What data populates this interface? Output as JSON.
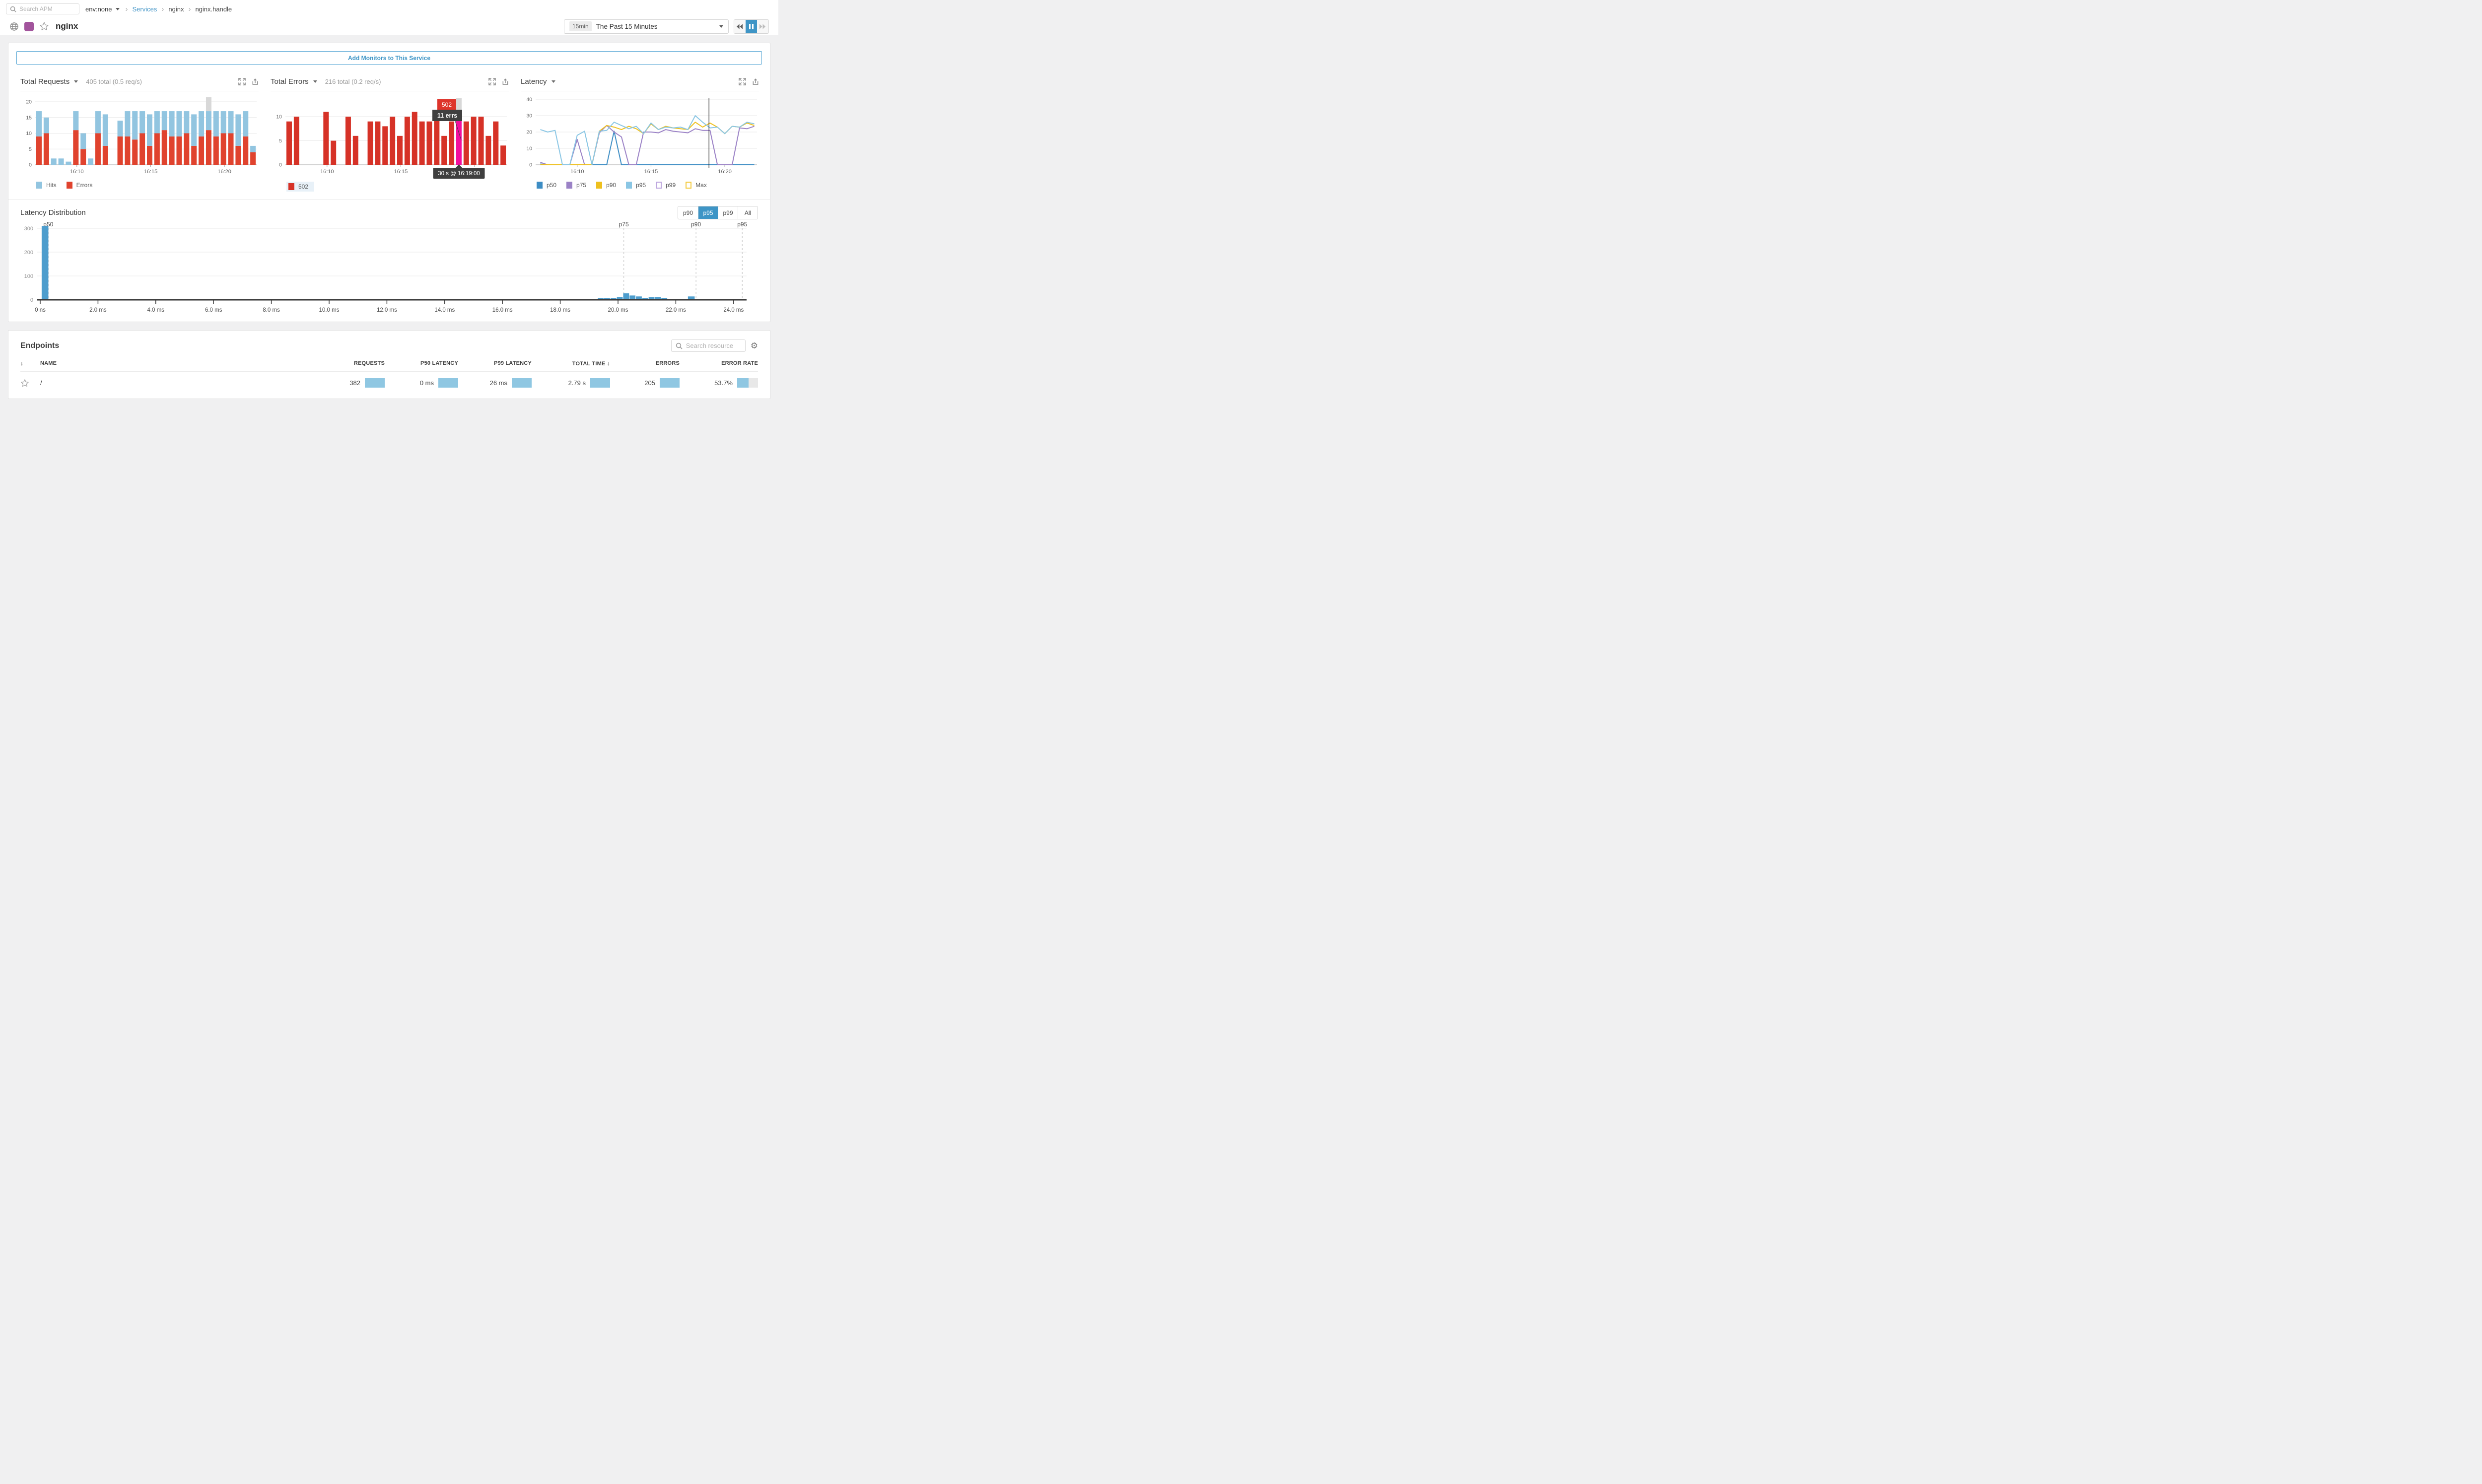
{
  "topbar": {
    "search_placeholder": "Search APM",
    "env_label": "env:none",
    "breadcrumb": {
      "link": "Services",
      "sep": "›",
      "level1": "nginx",
      "level2": "nginx.handle"
    }
  },
  "header": {
    "service_name": "nginx",
    "time_badge": "15min",
    "time_label": "The Past 15 Minutes"
  },
  "banner": {
    "label": "Add Monitors to This Service"
  },
  "charts": {
    "requests": {
      "title": "Total Requests",
      "summary": "405 total (0.5 req/s)",
      "legend": [
        {
          "label": "Hits",
          "color": "#92c5e0"
        },
        {
          "label": "Errors",
          "color": "#e0432e"
        }
      ]
    },
    "errors": {
      "title": "Total Errors",
      "summary": "216 total (0.2 req/s)",
      "legend": [
        {
          "label": "502",
          "color": "#d63227"
        }
      ],
      "tooltip": {
        "code": "502",
        "value": "11 errs",
        "time": "30 s @ 16:19:00"
      }
    },
    "latency": {
      "title": "Latency",
      "legend": [
        {
          "label": "p50",
          "color": "#3d8dc4",
          "filled": true
        },
        {
          "label": "p75",
          "color": "#9b82c6",
          "filled": true
        },
        {
          "label": "p90",
          "color": "#eec01e",
          "filled": true
        },
        {
          "label": "p95",
          "color": "#8ac6e4",
          "filled": true
        },
        {
          "label": "p99",
          "color": "#bda6de",
          "filled": false
        },
        {
          "label": "Max",
          "color": "#f3ca3e",
          "filled": false
        }
      ]
    }
  },
  "distribution": {
    "title": "Latency Distribution",
    "buttons": [
      "p90",
      "p95",
      "p99",
      "All"
    ],
    "active_button": "p95"
  },
  "endpoints": {
    "title": "Endpoints",
    "search_placeholder": "Search resource",
    "columns": {
      "name": "NAME",
      "requests": "REQUESTS",
      "p50": "P50 LATENCY",
      "p99": "P99 LATENCY",
      "total_time": "TOTAL TIME",
      "errors": "ERRORS",
      "error_rate": "ERROR RATE"
    },
    "sort_icon": "↓",
    "row": {
      "name": "/",
      "requests": "382",
      "p50": "0 ms",
      "p99": "26 ms",
      "total_time": "2.79 s",
      "errors": "205",
      "error_rate": "53.7%",
      "error_rate_pct": 53.7
    }
  },
  "colors": {
    "accent": "#3e95c6",
    "hits": "#92c5e0",
    "errors_requests": "#e0432e",
    "errors_502": "#d63227",
    "hover_gray": "#d8d8d8",
    "hover_magenta": "#f20f9e",
    "dist_bar": "#4d9dcd",
    "tooltip_dark": "#3f3f3f",
    "tooltip_red": "#de342b",
    "grid": "#e9e9e9",
    "axis": "#c2c2c2",
    "tick_text": "#6e6e6e"
  },
  "chart_data": [
    {
      "id": "total_requests",
      "type": "bar",
      "title": "Total Requests",
      "subtitle": "405 total (0.5 req/s)",
      "x_ticks": [
        {
          "label": "16:10",
          "index": 5
        },
        {
          "label": "16:15",
          "index": 15
        },
        {
          "label": "16:20",
          "index": 25
        }
      ],
      "ylim": [
        0,
        20
      ],
      "y_ticks": [
        0,
        5,
        10,
        15,
        20
      ],
      "grid": true,
      "legend_position": "bottom",
      "series": [
        {
          "name": "Errors",
          "color": "#e0432e",
          "values": [
            9,
            10,
            0,
            0,
            0,
            11,
            5,
            0,
            10,
            6,
            null,
            9,
            9,
            8,
            10,
            6,
            10,
            11,
            9,
            9,
            10,
            6,
            9,
            11,
            9,
            10,
            10,
            6,
            9,
            4
          ]
        },
        {
          "name": "Hits",
          "color": "#92c5e0",
          "values": [
            8,
            5,
            2,
            2,
            1,
            6,
            5,
            2,
            7,
            10,
            null,
            5,
            8,
            9,
            7,
            10,
            7,
            6,
            8,
            8,
            7,
            10,
            8,
            6,
            8,
            7,
            7,
            10,
            8,
            2
          ]
        }
      ],
      "hover_index": 23
    },
    {
      "id": "total_errors",
      "type": "bar",
      "title": "Total Errors",
      "subtitle": "216 total (0.2 req/s)",
      "x_ticks": [
        {
          "label": "16:10",
          "index": 5
        },
        {
          "label": "16:15",
          "index": 15
        },
        {
          "label": "16:20",
          "index": 25
        }
      ],
      "ylim": [
        0,
        11.5
      ],
      "y_ticks": [
        0,
        5,
        10
      ],
      "grid": true,
      "legend_position": "bottom",
      "series": [
        {
          "name": "502",
          "color": "#d63227",
          "values": [
            9,
            10,
            0,
            0,
            0,
            11,
            5,
            0,
            10,
            6,
            null,
            9,
            9,
            8,
            10,
            6,
            10,
            11,
            9,
            9,
            10,
            6,
            9,
            11,
            9,
            10,
            10,
            6,
            9,
            4
          ]
        }
      ],
      "hover_index": 23,
      "hover_value": 11,
      "annotations": {
        "code": "502",
        "value": "11 errs",
        "time": "30 s @ 16:19:00"
      }
    },
    {
      "id": "latency",
      "type": "line",
      "title": "Latency",
      "x_ticks": [
        {
          "label": "16:10",
          "index": 5
        },
        {
          "label": "16:15",
          "index": 15
        },
        {
          "label": "16:20",
          "index": 25
        }
      ],
      "ylim": [
        0,
        40
      ],
      "y_ticks": [
        0,
        10,
        20,
        30,
        40
      ],
      "grid": true,
      "legend_position": "bottom",
      "cursor_frac": 0.783,
      "series": [
        {
          "name": "p50",
          "color": "#3d8dc4",
          "values": [
            0.5,
            0,
            0,
            0,
            0,
            0,
            0,
            0,
            0,
            0,
            20.5,
            0,
            0,
            0,
            0,
            0,
            0,
            0,
            0,
            0,
            0,
            0,
            0,
            0,
            0,
            0,
            0,
            0,
            0,
            0
          ]
        },
        {
          "name": "p75",
          "color": "#9b82c6",
          "values": [
            1.5,
            0,
            0,
            0,
            0,
            15.5,
            0,
            0,
            19.5,
            24,
            20,
            17,
            0,
            0,
            20,
            20,
            19.5,
            21.5,
            20.5,
            20,
            19.5,
            22,
            21,
            21,
            0,
            0,
            0,
            22.5,
            22,
            23.5
          ]
        },
        {
          "name": "p90",
          "color": "#eec01e",
          "values": [
            0,
            0,
            0,
            0,
            0,
            0,
            0,
            0,
            20.5,
            24,
            23,
            21.5,
            23.5,
            22,
            19,
            25,
            21.5,
            23.5,
            22.5,
            22,
            21.5,
            26,
            23,
            25.5,
            23,
            19,
            23.5,
            23,
            25.5,
            24
          ]
        },
        {
          "name": "p95",
          "color": "#8ac6e4",
          "values": [
            21.5,
            20,
            21,
            0,
            0,
            18,
            20.5,
            0,
            20.5,
            21,
            26,
            24,
            22,
            23.5,
            19,
            25.5,
            21.5,
            23,
            22.5,
            23,
            21.5,
            30,
            26,
            22.5,
            23,
            19,
            23.5,
            23,
            26,
            25
          ]
        }
      ],
      "legend_only_series": [
        {
          "name": "p99",
          "color": "#bda6de"
        },
        {
          "name": "Max",
          "color": "#f3ca3e"
        }
      ]
    },
    {
      "id": "latency_distribution",
      "type": "histogram",
      "title": "Latency Distribution",
      "xlabel_unit": "ms",
      "xmax_ms": 24.45,
      "x_tick_labels": [
        "0 ns",
        "2.0 ms",
        "4.0 ms",
        "6.0 ms",
        "8.0 ms",
        "10.0 ms",
        "12.0 ms",
        "14.0 ms",
        "16.0 ms",
        "18.0 ms",
        "20.0 ms",
        "22.0 ms",
        "24.0 ms"
      ],
      "y_ticks": [
        0,
        100,
        200,
        300
      ],
      "grid": true,
      "bins": [
        {
          "ms": 0.05,
          "w": 0.25,
          "count": 310
        },
        {
          "ms": 19.3,
          "w": 0.22,
          "count": 8
        },
        {
          "ms": 19.52,
          "w": 0.22,
          "count": 8
        },
        {
          "ms": 19.74,
          "w": 0.22,
          "count": 8
        },
        {
          "ms": 19.96,
          "w": 0.22,
          "count": 12
        },
        {
          "ms": 20.18,
          "w": 0.22,
          "count": 27
        },
        {
          "ms": 20.4,
          "w": 0.22,
          "count": 18
        },
        {
          "ms": 20.62,
          "w": 0.22,
          "count": 14
        },
        {
          "ms": 20.84,
          "w": 0.22,
          "count": 8
        },
        {
          "ms": 21.06,
          "w": 0.22,
          "count": 12
        },
        {
          "ms": 21.28,
          "w": 0.22,
          "count": 12
        },
        {
          "ms": 21.5,
          "w": 0.22,
          "count": 8
        },
        {
          "ms": 22.42,
          "w": 0.25,
          "count": 14
        }
      ],
      "percentile_markers": [
        {
          "label": "p50",
          "ms": 0.28
        },
        {
          "label": "p75",
          "ms": 20.2
        },
        {
          "label": "p90",
          "ms": 22.7
        },
        {
          "label": "p95",
          "ms": 24.3
        }
      ]
    }
  ]
}
